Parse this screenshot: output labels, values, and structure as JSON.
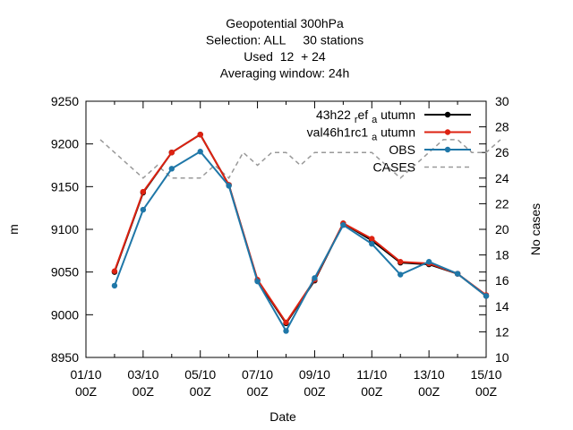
{
  "chart_data": {
    "type": "line",
    "title_lines": [
      "Geopotential 300hPa",
      "Selection: ALL     30 stations",
      "Used  12  + 24",
      "Averaging window: 24h"
    ],
    "xlabel": "Date",
    "ylabel": "m",
    "y2label": "No cases",
    "x_ticks": [
      [
        "01/10",
        "00Z"
      ],
      [
        "03/10",
        "00Z"
      ],
      [
        "05/10",
        "00Z"
      ],
      [
        "07/10",
        "00Z"
      ],
      [
        "09/10",
        "00Z"
      ],
      [
        "11/10",
        "00Z"
      ],
      [
        "13/10",
        "00Z"
      ],
      [
        "15/10",
        "00Z"
      ]
    ],
    "x_range": [
      0,
      14
    ],
    "y_range": [
      8950,
      9250
    ],
    "y_ticks": [
      8950,
      9000,
      9050,
      9100,
      9150,
      9200,
      9250
    ],
    "y2_range": [
      10,
      30
    ],
    "y2_ticks": [
      10,
      12,
      14,
      16,
      18,
      20,
      22,
      24,
      26,
      28,
      30
    ],
    "legend_position": "top-right",
    "grid": false,
    "x": [
      1,
      2,
      3,
      4,
      5,
      6,
      7,
      8,
      9,
      10,
      11,
      12,
      13,
      14
    ],
    "series": [
      {
        "name": "43h22",
        "name_sub": "r",
        "name_mid": "ef",
        "name_sub2": "a",
        "name_tail": "utumn",
        "color": "#000000",
        "axis": "left",
        "values": [
          9050,
          9143,
          9190,
          9211,
          9152,
          9040,
          8990,
          9040,
          9107,
          9087,
          9061,
          9059,
          9048,
          9022
        ]
      },
      {
        "name": "val46h1rc1",
        "name_sub": "a",
        "name_tail": "utumn",
        "color": "#dd2211",
        "axis": "left",
        "values": [
          9051,
          9144,
          9190,
          9211,
          9152,
          9041,
          8991,
          9041,
          9107,
          9089,
          9062,
          9060,
          9048,
          9023
        ]
      },
      {
        "name": "OBS",
        "color": "#1f77a8",
        "axis": "left",
        "values": [
          9034,
          9123,
          9171,
          9191,
          9151,
          9039,
          8981,
          9043,
          9105,
          9083,
          9047,
          9062,
          9048,
          9022
        ]
      },
      {
        "name": "CASES",
        "color": "#999999",
        "axis": "right",
        "dashed": true,
        "x": [
          0.5,
          1,
          1.5,
          2,
          2.5,
          3,
          3.5,
          4,
          4.5,
          5,
          5.5,
          6,
          6.5,
          7,
          7.5,
          8,
          8.5,
          9,
          9.5,
          10,
          10.5,
          11,
          11.5,
          12,
          12.5,
          13,
          13.5,
          14,
          14.5
        ],
        "values": [
          27,
          26,
          25,
          24,
          25,
          24,
          24,
          24,
          25,
          24,
          26,
          25,
          26,
          26,
          25,
          26,
          26,
          26,
          26,
          26,
          25,
          24,
          25,
          26,
          27,
          27,
          26,
          26,
          27
        ]
      }
    ]
  }
}
